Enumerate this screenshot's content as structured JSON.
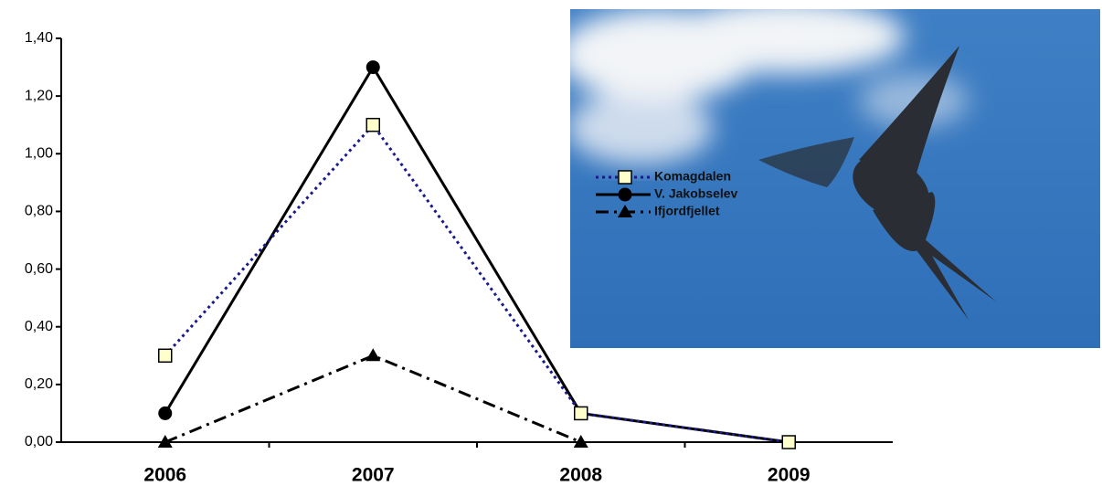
{
  "chart_data": {
    "type": "line",
    "categories": [
      "2006",
      "2007",
      "2008",
      "2009"
    ],
    "series": [
      {
        "name": "Komagdalen",
        "color": "#1a1a8c",
        "dash": "dotted",
        "marker": "square",
        "marker_fill": "#ffffcc",
        "values": [
          0.3,
          1.1,
          0.1,
          0.0
        ]
      },
      {
        "name": "V. Jakobselev",
        "color": "#000000",
        "dash": "solid",
        "marker": "circle",
        "marker_fill": "#000000",
        "values": [
          0.1,
          1.3,
          0.1,
          0.0
        ]
      },
      {
        "name": "Ifjordfjellet",
        "color": "#000000",
        "dash": "dashdot",
        "marker": "triangle",
        "marker_fill": "#000000",
        "values": [
          0.0,
          0.3,
          0.0,
          null
        ]
      }
    ],
    "ylim": [
      0,
      1.4
    ],
    "yticks": [
      {
        "value": 0,
        "label": "0,00"
      },
      {
        "value": 0.2,
        "label": "0,20"
      },
      {
        "value": 0.4,
        "label": "0,40"
      },
      {
        "value": 0.6,
        "label": "0,60"
      },
      {
        "value": 0.8,
        "label": "0,80"
      },
      {
        "value": 1.0,
        "label": "1,00"
      },
      {
        "value": 1.2,
        "label": "1,20"
      },
      {
        "value": 1.4,
        "label": "1,40"
      }
    ]
  }
}
